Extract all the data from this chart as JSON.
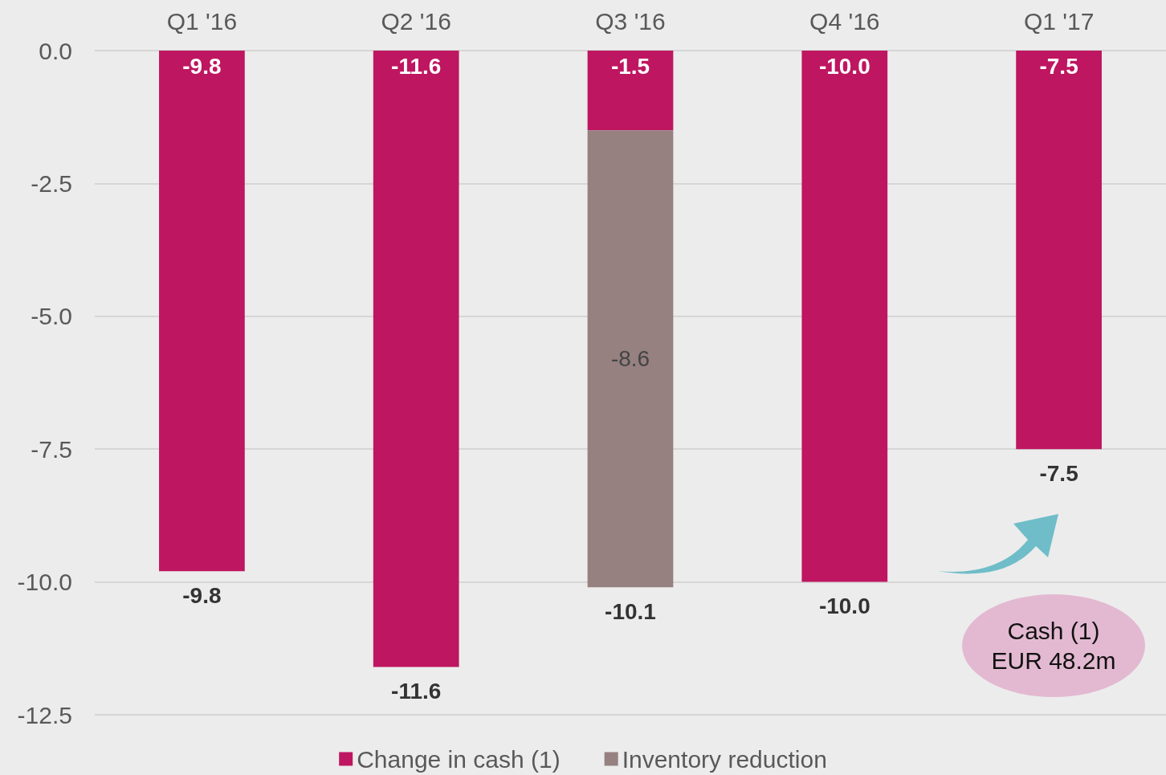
{
  "chart_data": {
    "type": "bar",
    "stacked": true,
    "categories": [
      "Q1 '16",
      "Q2 '16",
      "Q3 '16",
      "Q4 '16",
      "Q1 '17"
    ],
    "series": [
      {
        "name": "Change in cash (1)",
        "color": "#be1660",
        "values": [
          -9.8,
          -11.6,
          -1.5,
          -10.0,
          -7.5
        ],
        "value_labels": [
          "-9.8",
          "-11.6",
          "-1.5",
          "-10.0",
          "-7.5"
        ]
      },
      {
        "name": "Inventory reduction",
        "color": "#968080",
        "values": [
          null,
          null,
          -8.6,
          null,
          null
        ],
        "value_labels": [
          null,
          null,
          "-8.6",
          null,
          null
        ]
      }
    ],
    "totals": [
      "-9.8",
      "-11.6",
      "-10.1",
      "-10.0",
      "-7.5"
    ],
    "ylim": [
      -12.5,
      0
    ],
    "yticks": [
      {
        "value": 0,
        "label": "0.0"
      },
      {
        "value": -2.5,
        "label": "-2.5"
      },
      {
        "value": -5,
        "label": "-5.0"
      },
      {
        "value": -7.5,
        "label": "-7.5"
      },
      {
        "value": -10,
        "label": "-10.0"
      },
      {
        "value": -12.5,
        "label": "-12.5"
      }
    ],
    "grid": "y",
    "legend": "bottom",
    "annotations": [
      "Cash (1)\nEUR 48.2m"
    ]
  }
}
